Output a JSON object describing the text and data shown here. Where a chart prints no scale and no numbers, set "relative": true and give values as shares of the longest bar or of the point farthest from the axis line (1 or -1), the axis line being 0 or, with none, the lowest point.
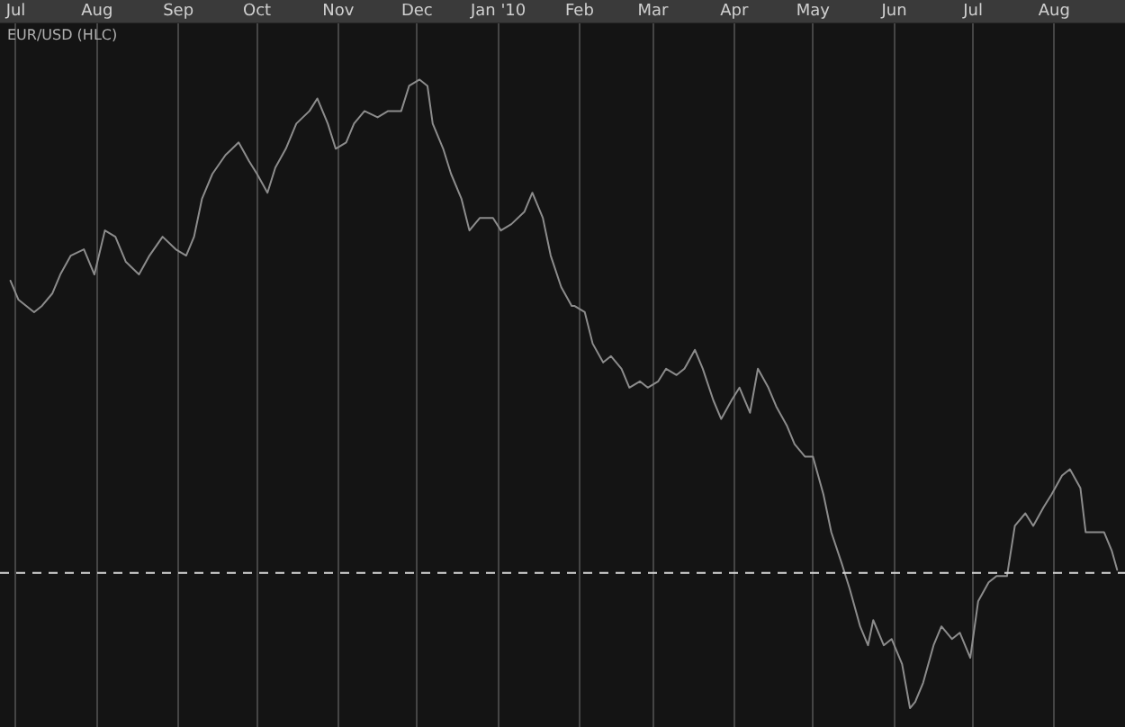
{
  "chart_data": {
    "type": "line",
    "title": "EUR/USD (HLC)",
    "relative": true,
    "color": "#8c8c8c",
    "grid": "x",
    "legend": false,
    "marker": "none",
    "line_style": "solid",
    "xlim": [
      "2009-06-25",
      "2010-08-28"
    ],
    "xticks": [
      {
        "value": "2009-07-01",
        "label": "Jul"
      },
      {
        "value": "2009-08-01",
        "label": "Aug"
      },
      {
        "value": "2009-09-01",
        "label": "Sep"
      },
      {
        "value": "2009-10-01",
        "label": "Oct"
      },
      {
        "value": "2009-11-01",
        "label": "Nov"
      },
      {
        "value": "2009-12-01",
        "label": "Dec"
      },
      {
        "value": "2010-01-01",
        "label": "Jan '10"
      },
      {
        "value": "2010-02-01",
        "label": "Feb"
      },
      {
        "value": "2010-03-01",
        "label": "Mar"
      },
      {
        "value": "2010-04-01",
        "label": "Apr"
      },
      {
        "value": "2010-05-01",
        "label": "May"
      },
      {
        "value": "2010-06-01",
        "label": "Jun"
      },
      {
        "value": "2010-07-01",
        "label": "Jul"
      },
      {
        "value": "2010-08-01",
        "label": "Aug"
      }
    ],
    "x": [
      "2009-06-29",
      "2009-07-02",
      "2009-07-08",
      "2009-07-11",
      "2009-07-15",
      "2009-07-18",
      "2009-07-22",
      "2009-07-27",
      "2009-07-31",
      "2009-08-04",
      "2009-08-08",
      "2009-08-12",
      "2009-08-17",
      "2009-08-21",
      "2009-08-26",
      "2009-08-31",
      "2009-09-04",
      "2009-09-07",
      "2009-09-10",
      "2009-09-14",
      "2009-09-19",
      "2009-09-24",
      "2009-09-28",
      "2009-10-01",
      "2009-10-05",
      "2009-10-08",
      "2009-10-12",
      "2009-10-16",
      "2009-10-21",
      "2009-10-24",
      "2009-10-28",
      "2009-10-31",
      "2009-11-04",
      "2009-11-07",
      "2009-11-11",
      "2009-11-16",
      "2009-11-20",
      "2009-11-25",
      "2009-11-28",
      "2009-12-02",
      "2009-12-05",
      "2009-12-07",
      "2009-12-11",
      "2009-12-14",
      "2009-12-18",
      "2009-12-21",
      "2009-12-25",
      "2009-12-30",
      "2010-01-02",
      "2010-01-06",
      "2010-01-11",
      "2010-01-14",
      "2010-01-18",
      "2010-01-21",
      "2010-01-25",
      "2010-01-29",
      "2010-01-30",
      "2010-02-03",
      "2010-02-06",
      "2010-02-10",
      "2010-02-13",
      "2010-02-17",
      "2010-02-20",
      "2010-02-24",
      "2010-02-27",
      "2010-03-03",
      "2010-03-06",
      "2010-03-10",
      "2010-03-13",
      "2010-03-17",
      "2010-03-20",
      "2010-03-24",
      "2010-03-27",
      "2010-03-31",
      "2010-04-03",
      "2010-04-07",
      "2010-04-10",
      "2010-04-14",
      "2010-04-17",
      "2010-04-21",
      "2010-04-24",
      "2010-04-28",
      "2010-05-01",
      "2010-05-05",
      "2010-05-08",
      "2010-05-12",
      "2010-05-15",
      "2010-05-19",
      "2010-05-22",
      "2010-05-24",
      "2010-05-28",
      "2010-05-31",
      "2010-06-04",
      "2010-06-07",
      "2010-06-09",
      "2010-06-12",
      "2010-06-16",
      "2010-06-19",
      "2010-06-23",
      "2010-06-26",
      "2010-06-30",
      "2010-07-03",
      "2010-07-07",
      "2010-07-10",
      "2010-07-14",
      "2010-07-17",
      "2010-07-21",
      "2010-07-24",
      "2010-07-28",
      "2010-07-31",
      "2010-08-04",
      "2010-08-07",
      "2010-08-11",
      "2010-08-13",
      "2010-08-16",
      "2010-08-20",
      "2010-08-23",
      "2010-08-25"
    ],
    "values": [
      0.68,
      0.65,
      0.63,
      0.64,
      0.66,
      0.69,
      0.72,
      0.73,
      0.69,
      0.76,
      0.75,
      0.71,
      0.69,
      0.72,
      0.75,
      0.73,
      0.72,
      0.75,
      0.81,
      0.85,
      0.88,
      0.9,
      0.87,
      0.85,
      0.82,
      0.86,
      0.89,
      0.93,
      0.95,
      0.97,
      0.93,
      0.89,
      0.9,
      0.93,
      0.95,
      0.94,
      0.95,
      0.95,
      0.99,
      1,
      0.99,
      0.93,
      0.89,
      0.85,
      0.81,
      0.76,
      0.78,
      0.78,
      0.76,
      0.77,
      0.79,
      0.82,
      0.78,
      0.72,
      0.67,
      0.64,
      0.64,
      0.63,
      0.58,
      0.55,
      0.56,
      0.54,
      0.51,
      0.52,
      0.51,
      0.52,
      0.54,
      0.53,
      0.54,
      0.57,
      0.54,
      0.49,
      0.46,
      0.49,
      0.51,
      0.47,
      0.54,
      0.51,
      0.48,
      0.45,
      0.42,
      0.4,
      0.4,
      0.34,
      0.28,
      0.23,
      0.19,
      0.13,
      0.1,
      0.14,
      0.1,
      0.11,
      0.07,
      0,
      0.01,
      0.04,
      0.1,
      0.13,
      0.11,
      0.12,
      0.08,
      0.17,
      0.2,
      0.21,
      0.21,
      0.29,
      0.31,
      0.29,
      0.32,
      0.34,
      0.37,
      0.38,
      0.35,
      0.28,
      0.28,
      0.28,
      0.25,
      0.22
    ],
    "ref_lines": [
      {
        "axis": "y",
        "value": 0.215,
        "color": "#d8d8d8",
        "line_style": "dashed"
      }
    ]
  }
}
